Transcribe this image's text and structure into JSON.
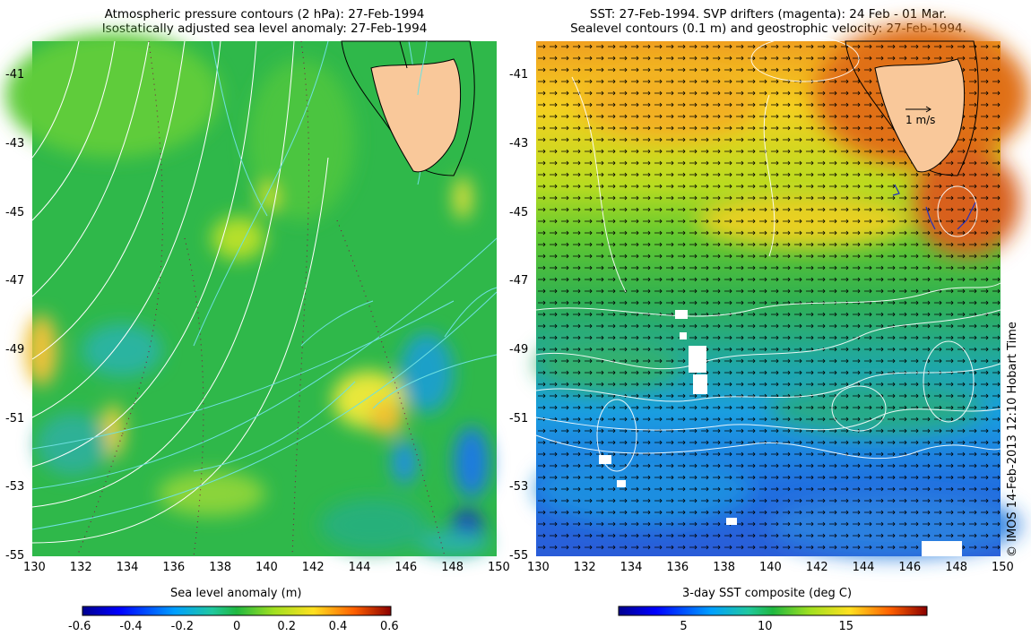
{
  "left_panel": {
    "title_line1": "Atmospheric pressure contours (2 hPa): 27-Feb-1994",
    "title_line2": "Isostatically adjusted sea level anomaly: 27-Feb-1994",
    "x_ticks": [
      "130",
      "132",
      "134",
      "136",
      "138",
      "140",
      "142",
      "144",
      "146",
      "148",
      "150"
    ],
    "y_ticks": [
      "-41",
      "-43",
      "-45",
      "-47",
      "-49",
      "-51",
      "-53",
      "-55"
    ],
    "colorbar_label": "Sea level anomaly (m)",
    "colorbar_ticks": [
      "-0.6",
      "-0.4",
      "-0.2",
      "0",
      "0.2",
      "0.4",
      "0.6"
    ]
  },
  "right_panel": {
    "title_line1": "SST: 27-Feb-1994. SVP drifters (magenta): 24 Feb - 01 Mar.",
    "title_line2": "Sealevel contours (0.1 m) and geostrophic velocity: 27-Feb-1994.",
    "x_ticks": [
      "130",
      "132",
      "134",
      "136",
      "138",
      "140",
      "142",
      "144",
      "146",
      "148",
      "150"
    ],
    "y_ticks": [
      "-41",
      "-43",
      "-45",
      "-47",
      "-49",
      "-51",
      "-53",
      "-55"
    ],
    "velocity_scale_label": "1 m/s",
    "colorbar_label": "3-day SST composite (deg C)",
    "colorbar_ticks": [
      "5",
      "10",
      "15"
    ]
  },
  "copyright": "© IMOS 14-Feb-2013 12:10 Hobart Time",
  "colors": {
    "land": "#f9c89a",
    "sla_background": "#33bb44",
    "pressure_contour": "#ffffff",
    "sla_contour": "#66dddd"
  },
  "map_extent": {
    "lon": [
      130,
      150
    ],
    "lat": [
      -55,
      -40
    ]
  }
}
